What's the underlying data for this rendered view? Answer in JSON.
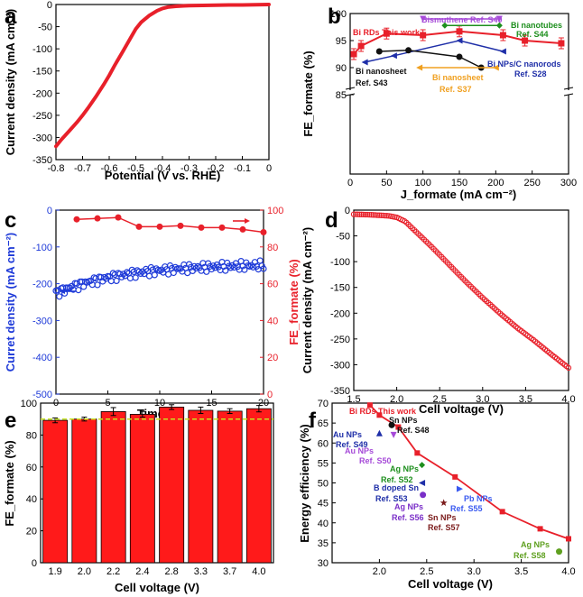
{
  "panels": {
    "a": {
      "label": "a",
      "chart_data": {
        "type": "line",
        "x": [
          -0.8,
          -0.78,
          -0.75,
          -0.72,
          -0.7,
          -0.68,
          -0.65,
          -0.62,
          -0.6,
          -0.58,
          -0.55,
          -0.52,
          -0.5,
          -0.48,
          -0.45,
          -0.42,
          -0.4,
          -0.38,
          -0.35,
          -0.32,
          -0.3,
          -0.25,
          -0.2,
          -0.15,
          -0.1,
          -0.05,
          0.0
        ],
        "y": [
          -320,
          -305,
          -285,
          -265,
          -250,
          -234,
          -208,
          -180,
          -160,
          -138,
          -107,
          -76,
          -55,
          -40,
          -25,
          -14,
          -9,
          -6,
          -4,
          -3,
          -2.5,
          -2,
          -1.5,
          -1,
          -1,
          -0.5,
          0
        ],
        "title": "",
        "xlabel": "Potential (V vs. RHE)",
        "ylabel": "Current density (mA cm⁻²)",
        "xlim": [
          -0.8,
          0.0
        ],
        "ylim": [
          -350,
          0
        ],
        "xticks": [
          "-0.8",
          "-0.7",
          "-0.6",
          "-0.5",
          "-0.4",
          "-0.3",
          "-0.2",
          "-0.1",
          "0"
        ],
        "yticks": [
          "0",
          "-50",
          "-100",
          "-150",
          "-200",
          "-250",
          "-300",
          "-350"
        ],
        "color": "#e8202a"
      }
    },
    "b": {
      "label": "b",
      "chart_data": {
        "type": "line",
        "xlabel": "J_formate (mA cm⁻²)",
        "ylabel": "FE_formate (%)",
        "xlim": [
          0,
          300
        ],
        "ylim": [
          85,
          100
        ],
        "xticks": [
          "0",
          "50",
          "100",
          "150",
          "200",
          "250",
          "300"
        ],
        "yticks": [
          "85",
          "90",
          "95",
          "100"
        ],
        "series": [
          {
            "name": "Bi RDs This work",
            "color": "#e8202a",
            "x": [
              5,
              15,
              50,
              100,
              150,
              210,
              240,
              290
            ],
            "y": [
              92.5,
              94,
              96.3,
              96,
              96.7,
              96,
              95,
              94.5
            ]
          },
          {
            "name": "Bismuthene Ref. S40",
            "color": "#a64ad8",
            "x": [
              100,
              205
            ],
            "y": [
              99,
              99
            ]
          },
          {
            "name": "Bi nanotubes Ref. S44",
            "color": "#1e8f1e",
            "x": [
              130,
              205
            ],
            "y": [
              97.8,
              97.8
            ]
          },
          {
            "name": "Bi NPs/C nanorods Ref. S28",
            "color": "#1f2fa8",
            "x": [
              20,
              60,
              150,
              210
            ],
            "y": [
              91,
              92.2,
              95,
              93
            ]
          },
          {
            "name": "Bi nanosheet Ref. S43",
            "color": "#111111",
            "x": [
              40,
              80,
              150,
              180
            ],
            "y": [
              93,
              93.2,
              92,
              90
            ]
          },
          {
            "name": "Bi nanosheet Ref. S37",
            "color": "#f0a020",
            "x": [
              95,
              200
            ],
            "y": [
              90,
              90
            ]
          }
        ],
        "annotations": [
          "Bi RDs This work",
          "Bismuthene Ref. S40",
          "Bi  nanotubes",
          "Ref. S44",
          "Bi NPs/C nanorods",
          "Ref. S28",
          "Bi nanosheet",
          "Ref. S43",
          "Bi nanosheet",
          "Ref. S37"
        ]
      }
    },
    "c": {
      "label": "c",
      "chart_data": {
        "type": "scatter",
        "xlabel": "Time (h)",
        "ylabel": "Curret density (mA cm⁻²)",
        "ylabel2": "FE_formate (%)",
        "xlim": [
          0,
          20
        ],
        "ylim": [
          -500,
          0
        ],
        "ylim2": [
          0,
          100
        ],
        "xticks": [
          "0",
          "5",
          "10",
          "15",
          "20"
        ],
        "yticks": [
          "0",
          "-100",
          "-200",
          "-300",
          "-400",
          "-500"
        ],
        "yticks2": [
          "0",
          "20",
          "40",
          "60",
          "80",
          "100"
        ],
        "series": [
          {
            "name": "Current density",
            "color": "#1e3ad8",
            "axis": "left",
            "x_start": 0,
            "x_end": 20,
            "y_start": -225,
            "y_end": -150
          },
          {
            "name": "FE formate",
            "color": "#e8202a",
            "axis": "right",
            "x": [
              2,
              4,
              6,
              8,
              10,
              12,
              14,
              16,
              18,
              20
            ],
            "y": [
              95,
              95.5,
              96,
              91,
              91,
              91.5,
              90.5,
              90.5,
              89.5,
              88
            ]
          }
        ]
      }
    },
    "d": {
      "label": "d",
      "chart_data": {
        "type": "line",
        "xlabel": "Cell voltage (V)",
        "ylabel": "Current density (mA cm⁻²)",
        "xlim": [
          1.5,
          4.0
        ],
        "ylim": [
          -350,
          0
        ],
        "xticks": [
          "1.5",
          "2.0",
          "2.5",
          "3.0",
          "3.5",
          "4.0"
        ],
        "yticks": [
          "0",
          "-50",
          "-100",
          "-150",
          "-200",
          "-250",
          "-300",
          "-350"
        ],
        "x": [
          1.5,
          1.7,
          1.9,
          2.0,
          2.1,
          2.2,
          2.4,
          2.6,
          2.8,
          3.0,
          3.2,
          3.4,
          3.6,
          3.8,
          4.0
        ],
        "y": [
          -8,
          -9,
          -11,
          -14,
          -22,
          -38,
          -70,
          -104,
          -138,
          -170,
          -200,
          -228,
          -253,
          -280,
          -306
        ],
        "color": "#e8202a"
      }
    },
    "e": {
      "label": "e",
      "chart_data": {
        "type": "bar",
        "xlabel": "Cell voltage (V)",
        "ylabel": "FE_formate (%)",
        "categories": [
          "1.9",
          "2.0",
          "2.2",
          "2.4",
          "2.8",
          "3.3",
          "3.7",
          "4.0"
        ],
        "values": [
          89.2,
          90,
          94.7,
          93,
          97.5,
          95.5,
          95,
          96.5
        ],
        "errors": [
          1.5,
          1.2,
          2.5,
          1.8,
          1.5,
          2,
          1.5,
          2
        ],
        "reference_line": 90,
        "ylim": [
          0,
          100
        ],
        "yticks": [
          "0",
          "20",
          "40",
          "60",
          "80",
          "100"
        ],
        "color": "#ff1a1a"
      }
    },
    "f": {
      "label": "f",
      "chart_data": {
        "type": "scatter",
        "xlabel": "Cell voltage (V)",
        "ylabel": "Energy efficiency (%)",
        "xlim": [
          1.5,
          4.0
        ],
        "ylim": [
          30,
          70
        ],
        "xticks": [
          "2.0",
          "2.5",
          "3.0",
          "3.5",
          "4.0"
        ],
        "yticks": [
          "30",
          "35",
          "40",
          "45",
          "50",
          "55",
          "60",
          "65",
          "70"
        ],
        "series": [
          {
            "name": "Bi RDs This work",
            "color": "#e8202a",
            "x": [
              1.9,
              2.0,
              2.2,
              2.4,
              2.8,
              3.3,
              3.7,
              4.0
            ],
            "y": [
              69.5,
              67,
              64,
              57.5,
              51.5,
              42.8,
              38.5,
              36
            ]
          }
        ],
        "points": [
          {
            "name": "Sn NPs Ref. S48",
            "color": "#111111",
            "shape": "circle",
            "x": 2.13,
            "y": 64.5
          },
          {
            "name": "Au NPs Ref. S49",
            "color": "#1f2fa8",
            "shape": "triangle-up",
            "x": 2.0,
            "y": 62.5
          },
          {
            "name": "Au NPs Ref. S50",
            "color": "#a64ad8",
            "shape": "triangle-down",
            "x": 2.15,
            "y": 62
          },
          {
            "name": "Ag NPs Ref. S52",
            "color": "#1e8f1e",
            "shape": "diamond",
            "x": 2.45,
            "y": 54.5
          },
          {
            "name": "B doped Sn Ref. S53",
            "color": "#1f2fa8",
            "shape": "triangle-left",
            "x": 2.45,
            "y": 50
          },
          {
            "name": "Ag NPs Ref. S56",
            "color": "#7a2fc8",
            "shape": "circle",
            "x": 2.46,
            "y": 47
          },
          {
            "name": "Pb NPs Ref. S55",
            "color": "#3a5af0",
            "shape": "triangle-right",
            "x": 2.85,
            "y": 48.5
          },
          {
            "name": "Sn NPs Ref. S57",
            "color": "#7a1a1a",
            "shape": "star",
            "x": 2.68,
            "y": 45
          },
          {
            "name": "Ag NPs Ref. S58",
            "color": "#5fa020",
            "shape": "circle",
            "x": 3.9,
            "y": 32.8
          }
        ],
        "annotations": [
          "Bi RDs This work",
          "Sn NPs",
          "Ref. S48",
          "Au NPs",
          "Ref. S49",
          "Au NPs",
          "Ref. S50",
          "Ag NPs",
          "Ref. S52",
          "B doped Sn",
          "Ref. S53",
          "Ag NPs",
          "Ref. S56",
          "Sn NPs",
          "Ref. S57",
          "Pb NPs",
          "Ref. S55",
          "Ag NPs",
          "Ref. S58"
        ]
      }
    }
  }
}
